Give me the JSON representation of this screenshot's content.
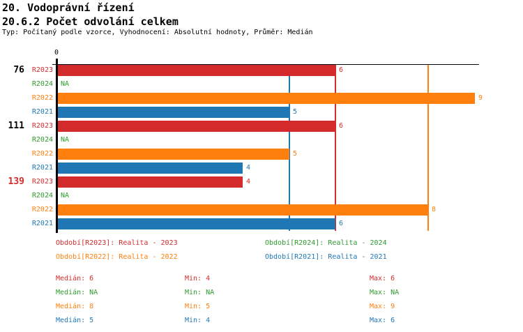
{
  "header": {
    "title_line1": "20. Vodoprávní řízení",
    "title_line2": "20.6.2 Počet odvolání celkem",
    "subtitle": "Typ: Počítaný podle vzorce, Vyhodnocení: Absolutní hodnoty, Průměr: Medián"
  },
  "colors": {
    "red": "#d32b2b",
    "green": "#2e9b2e",
    "orange": "#ff7f0e",
    "blue": "#1f77b4",
    "black": "#000000"
  },
  "chart_data": {
    "type": "bar",
    "orientation": "horizontal",
    "title": "20.6.2 Počet odvolání celkem",
    "x_axis": {
      "min": 0,
      "max": 9.1,
      "tick_labels": [
        "0"
      ],
      "grid": false
    },
    "series_order": [
      "R2023",
      "R2024",
      "R2022",
      "R2021"
    ],
    "groups": [
      {
        "label": "76",
        "label_color_key": "black",
        "bars": [
          {
            "series": "R2023",
            "color_key": "red",
            "value": 6,
            "value_label": "6"
          },
          {
            "series": "R2024",
            "color_key": "green",
            "value": null,
            "value_label": "NA"
          },
          {
            "series": "R2022",
            "color_key": "orange",
            "value": 9,
            "value_label": "9"
          },
          {
            "series": "R2021",
            "color_key": "blue",
            "value": 5,
            "value_label": "5"
          }
        ]
      },
      {
        "label": "111",
        "label_color_key": "black",
        "bars": [
          {
            "series": "R2023",
            "color_key": "red",
            "value": 6,
            "value_label": "6"
          },
          {
            "series": "R2024",
            "color_key": "green",
            "value": null,
            "value_label": "NA"
          },
          {
            "series": "R2022",
            "color_key": "orange",
            "value": 5,
            "value_label": "5"
          },
          {
            "series": "R2021",
            "color_key": "blue",
            "value": 4,
            "value_label": "4"
          }
        ]
      },
      {
        "label": "139",
        "label_color_key": "red",
        "bars": [
          {
            "series": "R2023",
            "color_key": "red",
            "value": 4,
            "value_label": "4"
          },
          {
            "series": "R2024",
            "color_key": "green",
            "value": null,
            "value_label": "NA"
          },
          {
            "series": "R2022",
            "color_key": "orange",
            "value": 8,
            "value_label": "8"
          },
          {
            "series": "R2021",
            "color_key": "blue",
            "value": 6,
            "value_label": "6"
          }
        ]
      }
    ],
    "median_lines": [
      {
        "series": "R2021",
        "value": 5,
        "color_key": "blue"
      },
      {
        "series": "R2023",
        "value": 6,
        "color_key": "red"
      },
      {
        "series": "R2022",
        "value": 8,
        "color_key": "orange"
      }
    ]
  },
  "legend": {
    "items": [
      {
        "text": "Období[R2023]: Realita - 2023",
        "color_key": "red"
      },
      {
        "text": "Období[R2024]: Realita - 2024",
        "color_key": "green"
      },
      {
        "text": "Období[R2022]: Realita - 2022",
        "color_key": "orange"
      },
      {
        "text": "Období[R2021]: Realita - 2021",
        "color_key": "blue"
      }
    ]
  },
  "stats": {
    "rows": [
      {
        "series": "R2023",
        "color_key": "red",
        "cells": [
          "Medián: 6",
          "Min: 4",
          "Max: 6"
        ]
      },
      {
        "series": "R2024",
        "color_key": "green",
        "cells": [
          "Medián: NA",
          "Min: NA",
          "Max: NA"
        ]
      },
      {
        "series": "R2022",
        "color_key": "orange",
        "cells": [
          "Medián: 8",
          "Min: 5",
          "Max: 9"
        ]
      },
      {
        "series": "R2021",
        "color_key": "blue",
        "cells": [
          "Medián: 5",
          "Min: 4",
          "Max: 6"
        ]
      }
    ]
  }
}
